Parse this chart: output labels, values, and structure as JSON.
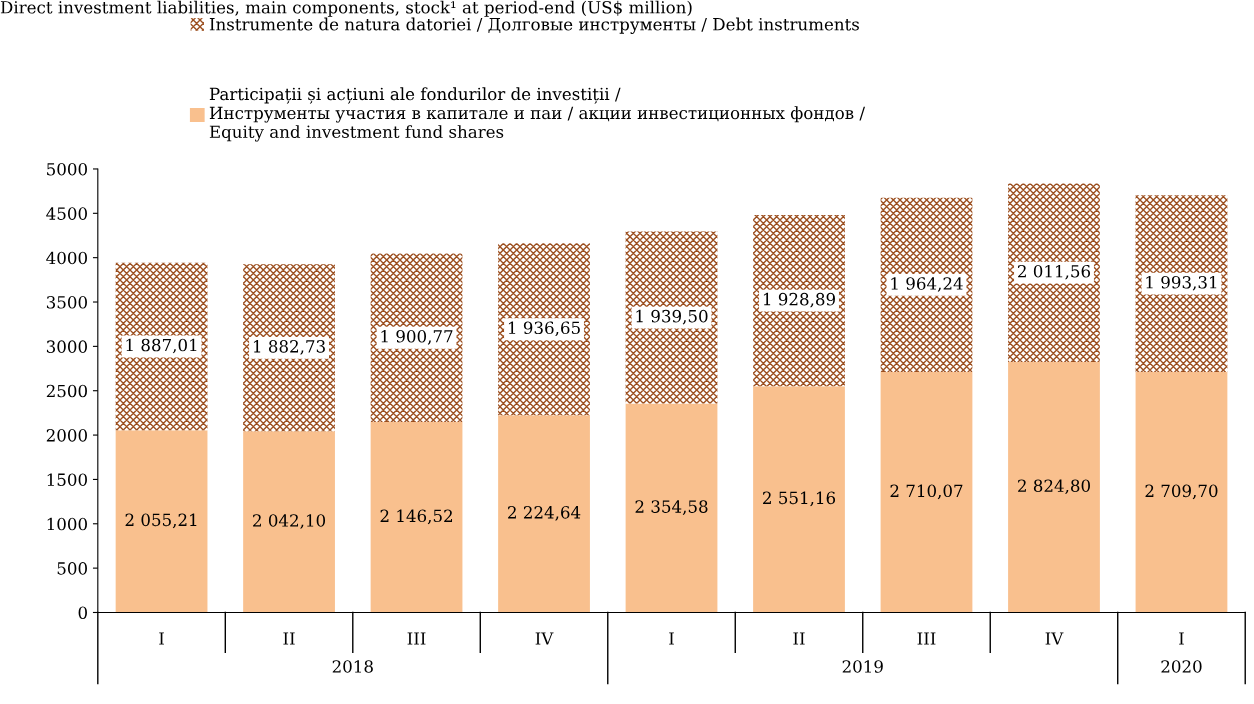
{
  "chart_data": {
    "type": "bar",
    "stacked": true,
    "title": "Direct investment liabilities, main components, stock¹ at period-end (US$ million)",
    "categories": [
      "I",
      "II",
      "III",
      "IV",
      "I",
      "II",
      "III",
      "IV",
      "I"
    ],
    "annotations": [
      "2018",
      "2019",
      "2020"
    ],
    "series": [
      {
        "name": "Participații și acțiuni ale fondurilor de investiții /\nИнструменты участия в капитале и паи / акции инвестиционных фондов /\nEquity and investment fund shares",
        "color": "#f9c08e",
        "values": [
          2055.21,
          2042.1,
          2146.52,
          2224.64,
          2354.58,
          2551.16,
          2710.07,
          2824.8,
          2709.7
        ],
        "value_labels": [
          "2 055,21",
          "2 042,10",
          "2 146,52",
          "2 224,64",
          "2 354,58",
          "2 551,16",
          "2 710,07",
          "2 824,80",
          "2 709,70"
        ]
      },
      {
        "name": "Instrumente de natura datoriei / Долговые инструменты / Debt instruments",
        "color": "#9c4f1f",
        "values": [
          1887.01,
          1882.73,
          1900.77,
          1936.65,
          1939.5,
          1928.89,
          1964.24,
          2011.56,
          1993.31
        ],
        "value_labels": [
          "1 887,01",
          "1 882,73",
          "1 900,77",
          "1 936,65",
          "1 939,50",
          "1 928,89",
          "1 964,24",
          "2 011,56",
          "1 993,31"
        ]
      }
    ],
    "ylim": [
      0,
      5000
    ],
    "yticks": [
      0,
      500,
      1000,
      1500,
      2000,
      2500,
      3000,
      3500,
      4000,
      4500,
      5000
    ],
    "grid": false,
    "legend": "top left"
  }
}
